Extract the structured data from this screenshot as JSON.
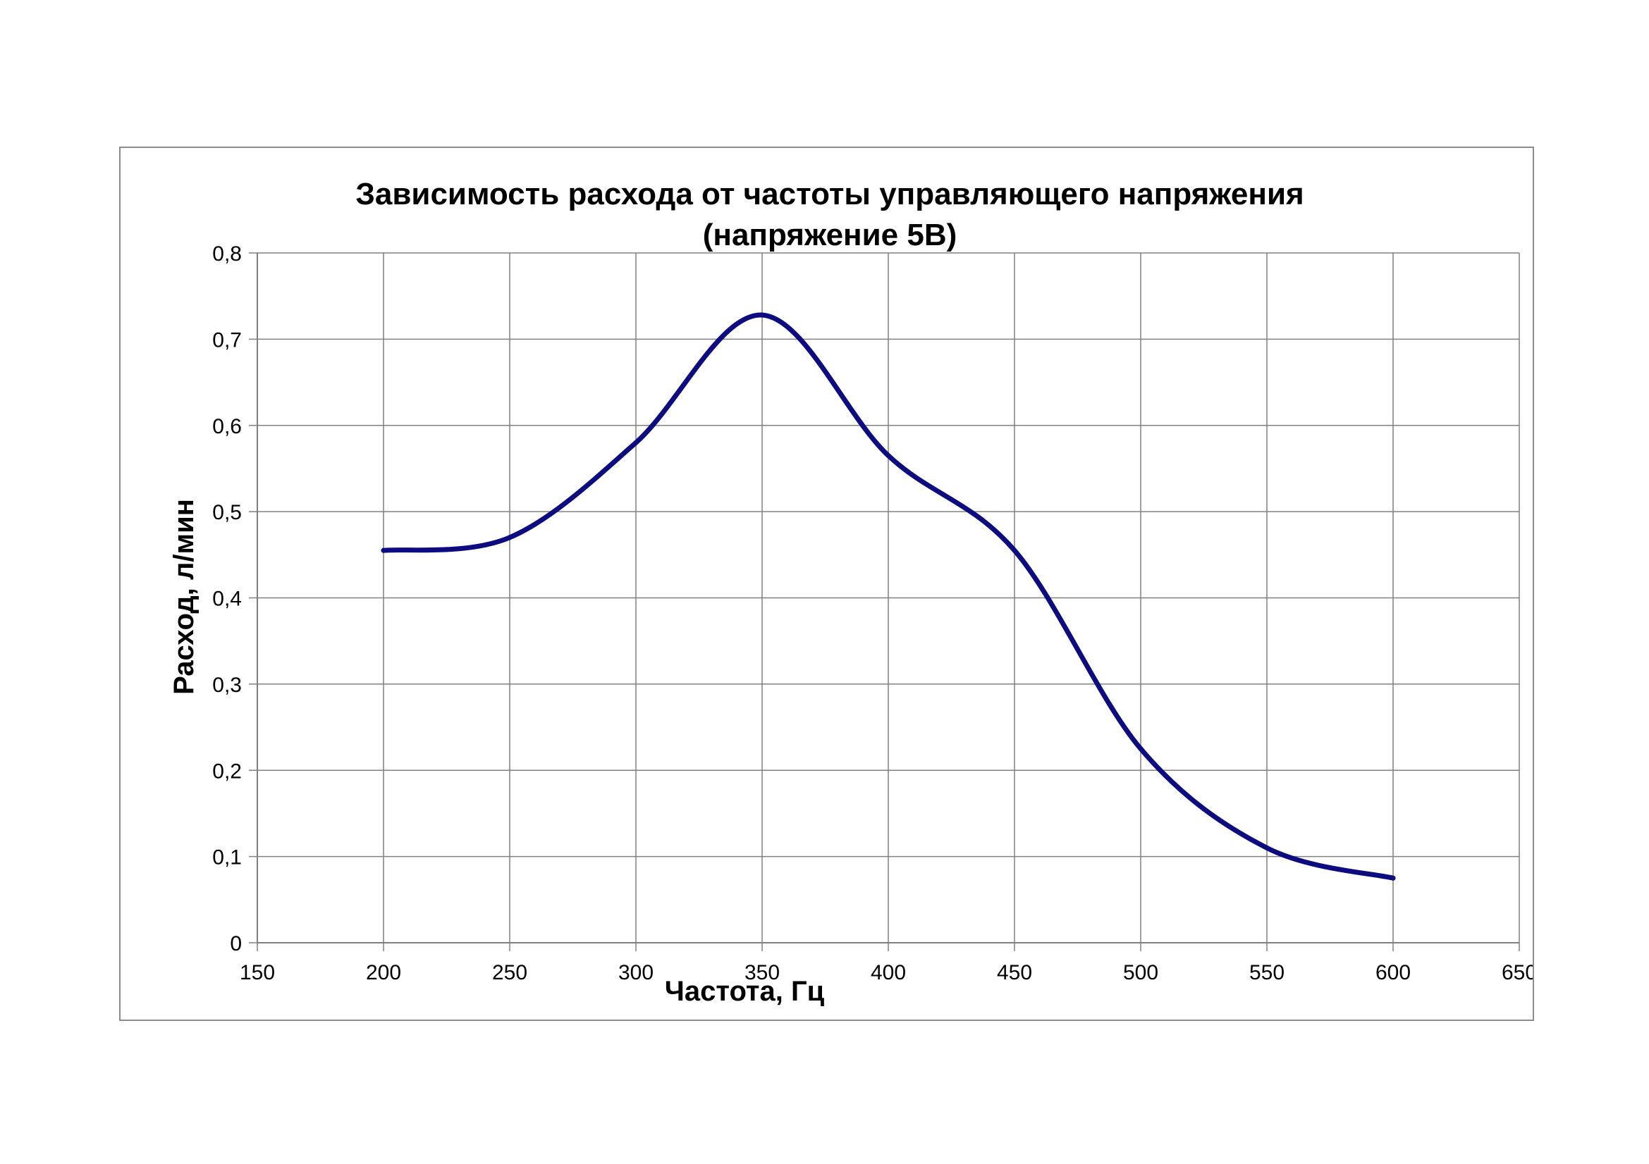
{
  "colors": {
    "series": "#0c0c80",
    "grid": "#808080",
    "axis": "#808080",
    "frame": "#8c8c8c"
  },
  "chart_data": {
    "type": "line",
    "smooth": true,
    "title": [
      "Зависимость расхода от частоты управляющего напряжения",
      "(напряжение 5В)"
    ],
    "xlabel": "Частота, Гц",
    "ylabel": "Расход, л/мин",
    "xlim": [
      150,
      650
    ],
    "ylim": [
      0,
      0.8
    ],
    "x_ticks": [
      150,
      200,
      250,
      300,
      350,
      400,
      450,
      500,
      550,
      600,
      650
    ],
    "y_ticks": [
      0,
      0.1,
      0.2,
      0.3,
      0.4,
      0.5,
      0.6,
      0.7,
      0.8
    ],
    "x_tick_labels": [
      "150",
      "200",
      "250",
      "300",
      "350",
      "400",
      "450",
      "500",
      "550",
      "600",
      "650"
    ],
    "y_tick_labels": [
      "0",
      "0,1",
      "0,2",
      "0,3",
      "0,4",
      "0,5",
      "0,6",
      "0,7",
      "0,8"
    ],
    "grid": true,
    "legend": "none",
    "series": [
      {
        "x": [
          200,
          250,
          300,
          350,
          400,
          450,
          500,
          550,
          600
        ],
        "y": [
          0.455,
          0.47,
          0.58,
          0.728,
          0.565,
          0.455,
          0.225,
          0.11,
          0.075
        ]
      }
    ]
  }
}
